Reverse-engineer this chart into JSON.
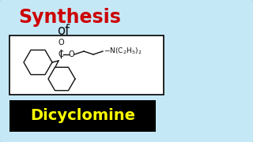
{
  "bg_color": "#c5e8f7",
  "title_text": "Synthesis",
  "title_color": "#cc0000",
  "of_text": "of",
  "of_color": "#111111",
  "drug_name": "Dicyclomine",
  "drug_color": "#ffff00",
  "drug_bg": "#000000",
  "box_bg": "#ffffff",
  "box_border": "#000000",
  "title_fontsize": 17,
  "of_fontsize": 12,
  "drug_fontsize": 14,
  "fig_width": 3.2,
  "fig_height": 1.8,
  "fig_dpi": 100
}
